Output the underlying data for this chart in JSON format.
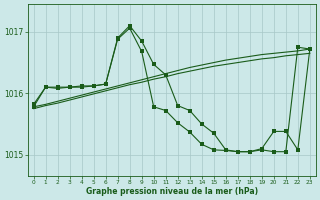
{
  "title": "Graphe pression niveau de la mer (hPa)",
  "background_color": "#cce8e8",
  "line_color": "#1a5c1a",
  "grid_color": "#a8c8c8",
  "x_ticks": [
    0,
    1,
    2,
    3,
    4,
    5,
    6,
    7,
    8,
    9,
    10,
    11,
    12,
    13,
    14,
    15,
    16,
    17,
    18,
    19,
    20,
    21,
    22,
    23
  ],
  "y_ticks": [
    1015,
    1016,
    1017
  ],
  "ylim": [
    1014.65,
    1017.45
  ],
  "xlim": [
    -0.5,
    23.5
  ],
  "line1_x": [
    0,
    1,
    2,
    3,
    4,
    5,
    6,
    7,
    8,
    9,
    10,
    11,
    12,
    13,
    14,
    15,
    16,
    17,
    18,
    19,
    20,
    21,
    22,
    23
  ],
  "line1_y": [
    1015.82,
    1016.1,
    1016.1,
    1016.1,
    1016.1,
    1016.12,
    1016.15,
    1016.9,
    1017.1,
    1016.85,
    1016.47,
    1016.3,
    1015.8,
    1015.72,
    1015.5,
    1015.35,
    1015.08,
    1015.05,
    1015.05,
    1015.08,
    1015.05,
    1015.05,
    1016.75,
    1016.72
  ],
  "line2_x": [
    0,
    1,
    2,
    3,
    4,
    5,
    6,
    7,
    8,
    9,
    10,
    11,
    12,
    13,
    14,
    15,
    16,
    17,
    18,
    19,
    20,
    21,
    22,
    23
  ],
  "line2_y": [
    1015.78,
    1016.1,
    1016.08,
    1016.1,
    1016.12,
    1016.12,
    1016.15,
    1016.88,
    1017.06,
    1016.68,
    1015.78,
    1015.72,
    1015.52,
    1015.37,
    1015.17,
    1015.08,
    1015.07,
    1015.05,
    1015.05,
    1015.1,
    1015.38,
    1015.38,
    1015.08,
    1016.72
  ],
  "smooth1_x": [
    0,
    1,
    2,
    3,
    4,
    5,
    6,
    7,
    8,
    9,
    10,
    11,
    12,
    13,
    14,
    15,
    16,
    17,
    18,
    19,
    20,
    21,
    22,
    23
  ],
  "smooth1_y": [
    1015.78,
    1015.82,
    1015.87,
    1015.92,
    1015.97,
    1016.02,
    1016.07,
    1016.12,
    1016.17,
    1016.22,
    1016.27,
    1016.32,
    1016.37,
    1016.42,
    1016.46,
    1016.5,
    1016.54,
    1016.57,
    1016.6,
    1016.63,
    1016.65,
    1016.67,
    1016.69,
    1016.72
  ],
  "smooth2_x": [
    0,
    1,
    2,
    3,
    4,
    5,
    6,
    7,
    8,
    9,
    10,
    11,
    12,
    13,
    14,
    15,
    16,
    17,
    18,
    19,
    20,
    21,
    22,
    23
  ],
  "smooth2_y": [
    1015.75,
    1015.8,
    1015.84,
    1015.89,
    1015.94,
    1015.99,
    1016.04,
    1016.09,
    1016.14,
    1016.18,
    1016.23,
    1016.27,
    1016.32,
    1016.36,
    1016.4,
    1016.44,
    1016.47,
    1016.5,
    1016.53,
    1016.56,
    1016.58,
    1016.61,
    1016.63,
    1016.65
  ]
}
